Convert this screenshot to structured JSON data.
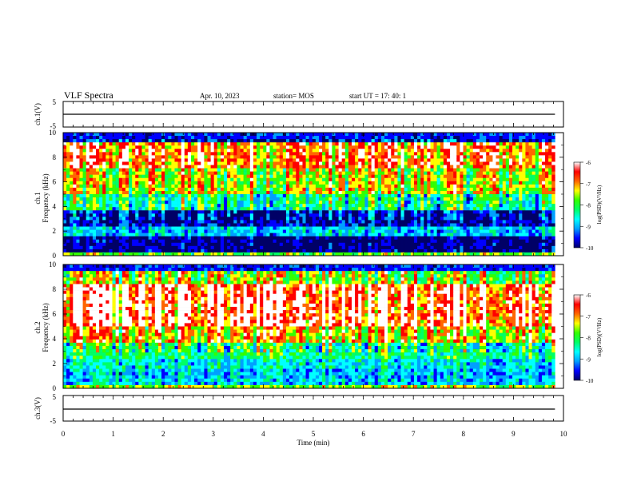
{
  "header": {
    "title": "VLF Spectra",
    "date": "Apr. 10, 2023",
    "station": "station= MOS",
    "start": "start  UT  =    17: 40: 1"
  },
  "colors": {
    "colormap": [
      "#000066",
      "#0000ff",
      "#00a0ff",
      "#00ffff",
      "#00ff66",
      "#33ff00",
      "#ffff00",
      "#ff6600",
      "#ff0000",
      "#ffffff"
    ],
    "trace": "#000000",
    "axis": "#000000"
  },
  "chart_data": [
    {
      "type": "line",
      "panel": "ch1-waveform",
      "ylabel": "ch.1(V)",
      "ylim": [
        -5,
        5
      ],
      "yticks": [
        "5",
        "-5"
      ],
      "xlim": [
        0,
        10
      ],
      "series": [
        {
          "x": [
            0,
            9.83
          ],
          "y": [
            0,
            0
          ]
        }
      ]
    },
    {
      "type": "heatmap",
      "panel": "ch1-spectrogram",
      "ylabel": "ch.1\nFrequency (kHz)",
      "ylim": [
        0,
        10
      ],
      "yticks": [
        "0",
        "2",
        "4",
        "6",
        "8",
        "10"
      ],
      "xlim": [
        0,
        10
      ],
      "data_end_min": 9.83,
      "colorbar": {
        "label": "log(PSD)(V²/Hz)",
        "range": [
          -10,
          -6
        ],
        "ticks": [
          "-6",
          "-7",
          "-8",
          "-9",
          "-10"
        ]
      }
    },
    {
      "type": "heatmap",
      "panel": "ch2-spectrogram",
      "ylabel": "ch.2\nFrequency (kHz)",
      "ylim": [
        0,
        10
      ],
      "yticks": [
        "0",
        "2",
        "4",
        "6",
        "8",
        "10"
      ],
      "xlim": [
        0,
        10
      ],
      "data_end_min": 9.83,
      "colorbar": {
        "label": "log(PSD)(V²/Hz)",
        "range": [
          -10,
          -6
        ],
        "ticks": [
          "-6",
          "-7",
          "-8",
          "-9",
          "-10"
        ]
      }
    },
    {
      "type": "line",
      "panel": "ch3-waveform",
      "ylabel": "ch.3(V)",
      "ylim": [
        -5,
        5
      ],
      "yticks": [
        "5",
        "-5"
      ],
      "xlim": [
        0,
        10
      ],
      "xlabel": "Time  (min)",
      "xticks": [
        "0",
        "1",
        "2",
        "3",
        "4",
        "5",
        "6",
        "7",
        "8",
        "9",
        "10"
      ],
      "series": [
        {
          "x": [
            0,
            9.83
          ],
          "y": [
            0,
            0
          ]
        }
      ]
    }
  ]
}
